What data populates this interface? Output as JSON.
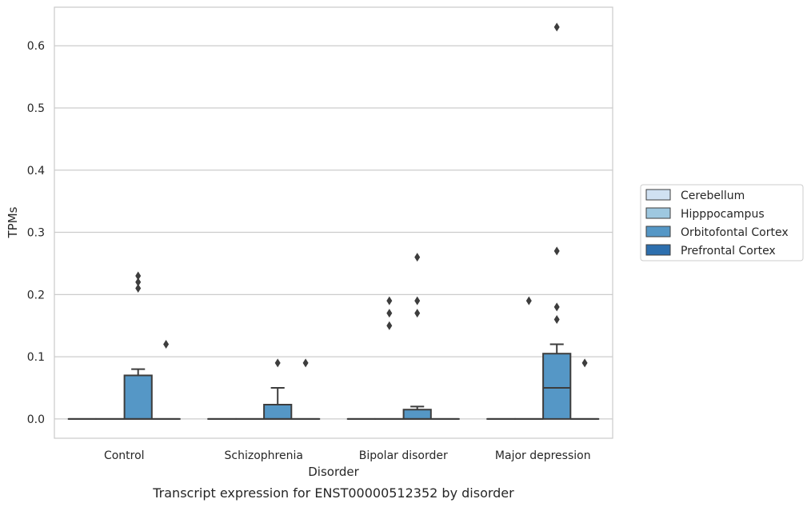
{
  "chart_data": {
    "type": "box",
    "caption": "Transcript expression for ENST00000512352 by disorder",
    "xlabel": "Disorder",
    "ylabel": "TPMs",
    "ylim": [
      -0.031,
      0.662
    ],
    "yticks": [
      "0.0",
      "0.1",
      "0.2",
      "0.3",
      "0.4",
      "0.5",
      "0.6"
    ],
    "grid": true,
    "legend_position": "right",
    "categories": [
      "Control",
      "Schizophrenia",
      "Bipolar disorder",
      "Major depression"
    ],
    "series": [
      {
        "name": "Cerebellum",
        "color": "#d0e1f2",
        "boxes": [
          {
            "q1": 0,
            "median": 0,
            "q3": 0,
            "whisker_low": 0,
            "whisker_high": 0,
            "outliers": []
          },
          {
            "q1": 0,
            "median": 0,
            "q3": 0,
            "whisker_low": 0,
            "whisker_high": 0,
            "outliers": []
          },
          {
            "q1": 0,
            "median": 0,
            "q3": 0,
            "whisker_low": 0,
            "whisker_high": 0,
            "outliers": []
          },
          {
            "q1": 0,
            "median": 0,
            "q3": 0,
            "whisker_low": 0,
            "whisker_high": 0,
            "outliers": []
          }
        ]
      },
      {
        "name": "Hipppocampus",
        "color": "#9ec8e0",
        "boxes": [
          {
            "q1": 0,
            "median": 0,
            "q3": 0,
            "whisker_low": 0,
            "whisker_high": 0,
            "outliers": []
          },
          {
            "q1": 0,
            "median": 0,
            "q3": 0,
            "whisker_low": 0,
            "whisker_high": 0,
            "outliers": []
          },
          {
            "q1": 0,
            "median": 0,
            "q3": 0,
            "whisker_low": 0,
            "whisker_high": 0,
            "outliers": [
              0.17,
              0.15,
              0.19
            ]
          },
          {
            "q1": 0,
            "median": 0,
            "q3": 0,
            "whisker_low": 0,
            "whisker_high": 0,
            "outliers": [
              0.19
            ]
          }
        ]
      },
      {
        "name": "Orbitofontal Cortex",
        "color": "#5597c6",
        "boxes": [
          {
            "q1": 0,
            "median": 0,
            "q3": 0.07,
            "whisker_low": 0,
            "whisker_high": 0.08,
            "outliers": [
              0.21,
              0.22,
              0.23
            ]
          },
          {
            "q1": 0,
            "median": 0,
            "q3": 0.023,
            "whisker_low": 0,
            "whisker_high": 0.05,
            "outliers": [
              0.09
            ]
          },
          {
            "q1": 0,
            "median": 0,
            "q3": 0.015,
            "whisker_low": 0,
            "whisker_high": 0.02,
            "outliers": [
              0.19,
              0.17,
              0.26
            ]
          },
          {
            "q1": 0,
            "median": 0.05,
            "q3": 0.105,
            "whisker_low": 0,
            "whisker_high": 0.12,
            "outliers": [
              0.18,
              0.16,
              0.27,
              0.63
            ]
          }
        ]
      },
      {
        "name": "Prefrontal Cortex",
        "color": "#2d6fae",
        "boxes": [
          {
            "q1": 0,
            "median": 0,
            "q3": 0,
            "whisker_low": 0,
            "whisker_high": 0,
            "outliers": [
              0.12
            ]
          },
          {
            "q1": 0,
            "median": 0,
            "q3": 0,
            "whisker_low": 0,
            "whisker_high": 0,
            "outliers": [
              0.09
            ]
          },
          {
            "q1": 0,
            "median": 0,
            "q3": 0,
            "whisker_low": 0,
            "whisker_high": 0,
            "outliers": []
          },
          {
            "q1": 0,
            "median": 0,
            "q3": 0,
            "whisker_low": 0,
            "whisker_high": 0,
            "outliers": [
              0.09
            ]
          }
        ]
      }
    ]
  }
}
